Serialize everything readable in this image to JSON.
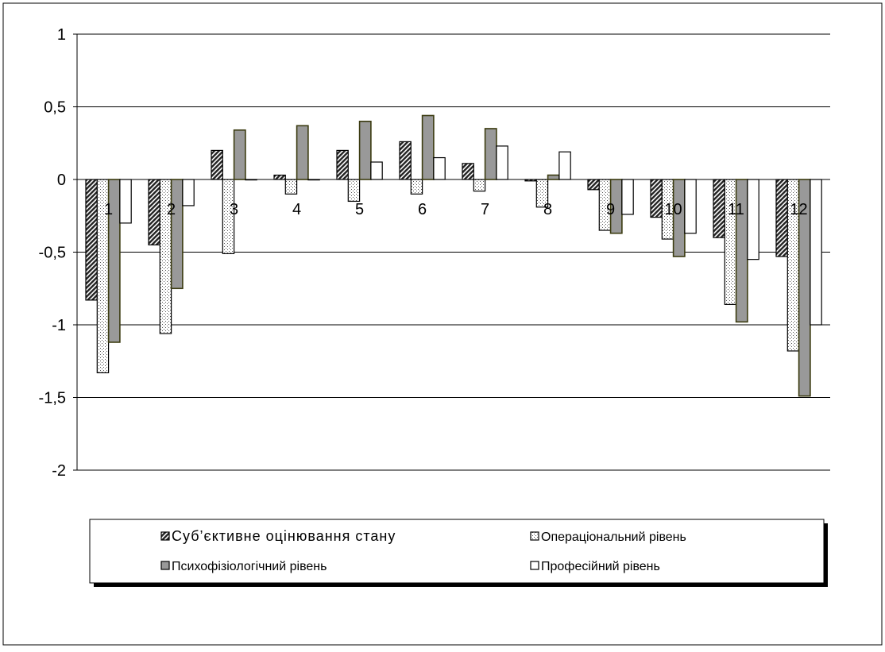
{
  "chart_data": {
    "type": "bar",
    "title": "",
    "xlabel": "",
    "ylabel": "",
    "categories": [
      "1",
      "2",
      "3",
      "4",
      "5",
      "6",
      "7",
      "8",
      "9",
      "10",
      "11",
      "12"
    ],
    "ylim": [
      -2,
      1
    ],
    "yticks": [
      1,
      0.5,
      0,
      -0.5,
      -1,
      -1.5,
      -2
    ],
    "ytick_labels": [
      "1",
      "0,5",
      "0",
      "-0,5",
      "-1",
      "-1,5",
      "-2"
    ],
    "grid": true,
    "legend_position": "bottom",
    "series": [
      {
        "name": "Суб’єктивне оцінювання стану",
        "pattern": "hatch",
        "color": "#3a3a3a",
        "values": [
          -0.83,
          -0.45,
          0.2,
          0.03,
          0.2,
          0.26,
          0.11,
          -0.01,
          -0.07,
          -0.26,
          -0.4,
          -0.53
        ]
      },
      {
        "name": "Операціональний рівень",
        "pattern": "dots",
        "color": "#ffffff",
        "values": [
          -1.33,
          -1.06,
          -0.51,
          -0.1,
          -0.15,
          -0.1,
          -0.08,
          -0.19,
          -0.35,
          -0.41,
          -0.86,
          -1.18
        ]
      },
      {
        "name": "Психофізіологічний рівень",
        "pattern": "solid",
        "color": "#999999",
        "values": [
          -1.12,
          -0.75,
          0.34,
          0.37,
          0.4,
          0.44,
          0.35,
          0.03,
          -0.37,
          -0.53,
          -0.98,
          -1.49
        ]
      },
      {
        "name": "Професійний рівень",
        "pattern": "solid",
        "color": "#ffffff",
        "values": [
          -0.3,
          -0.18,
          0.0,
          0.0,
          0.12,
          0.15,
          0.23,
          0.19,
          -0.24,
          -0.37,
          -0.55,
          -1.0
        ]
      }
    ]
  }
}
